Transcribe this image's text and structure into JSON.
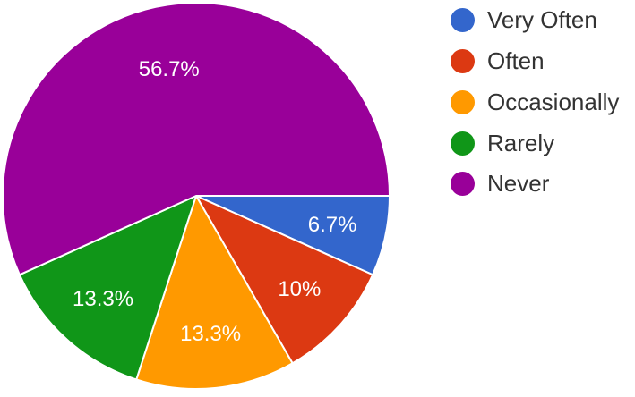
{
  "chart_data": {
    "type": "pie",
    "slices": [
      {
        "label": "Very Often",
        "value": 6.7,
        "value_label": "6.7%",
        "color": "#3366cc"
      },
      {
        "label": "Often",
        "value": 10,
        "value_label": "10%",
        "color": "#dc3912"
      },
      {
        "label": "Occasionally",
        "value": 13.3,
        "value_label": "13.3%",
        "color": "#ff9900"
      },
      {
        "label": "Rarely",
        "value": 13.3,
        "value_label": "13.3%",
        "color": "#109618"
      },
      {
        "label": "Never",
        "value": 56.7,
        "value_label": "56.7%",
        "color": "#990099"
      }
    ],
    "legend_position": "right",
    "start_direction": "east",
    "direction": "clockwise"
  }
}
